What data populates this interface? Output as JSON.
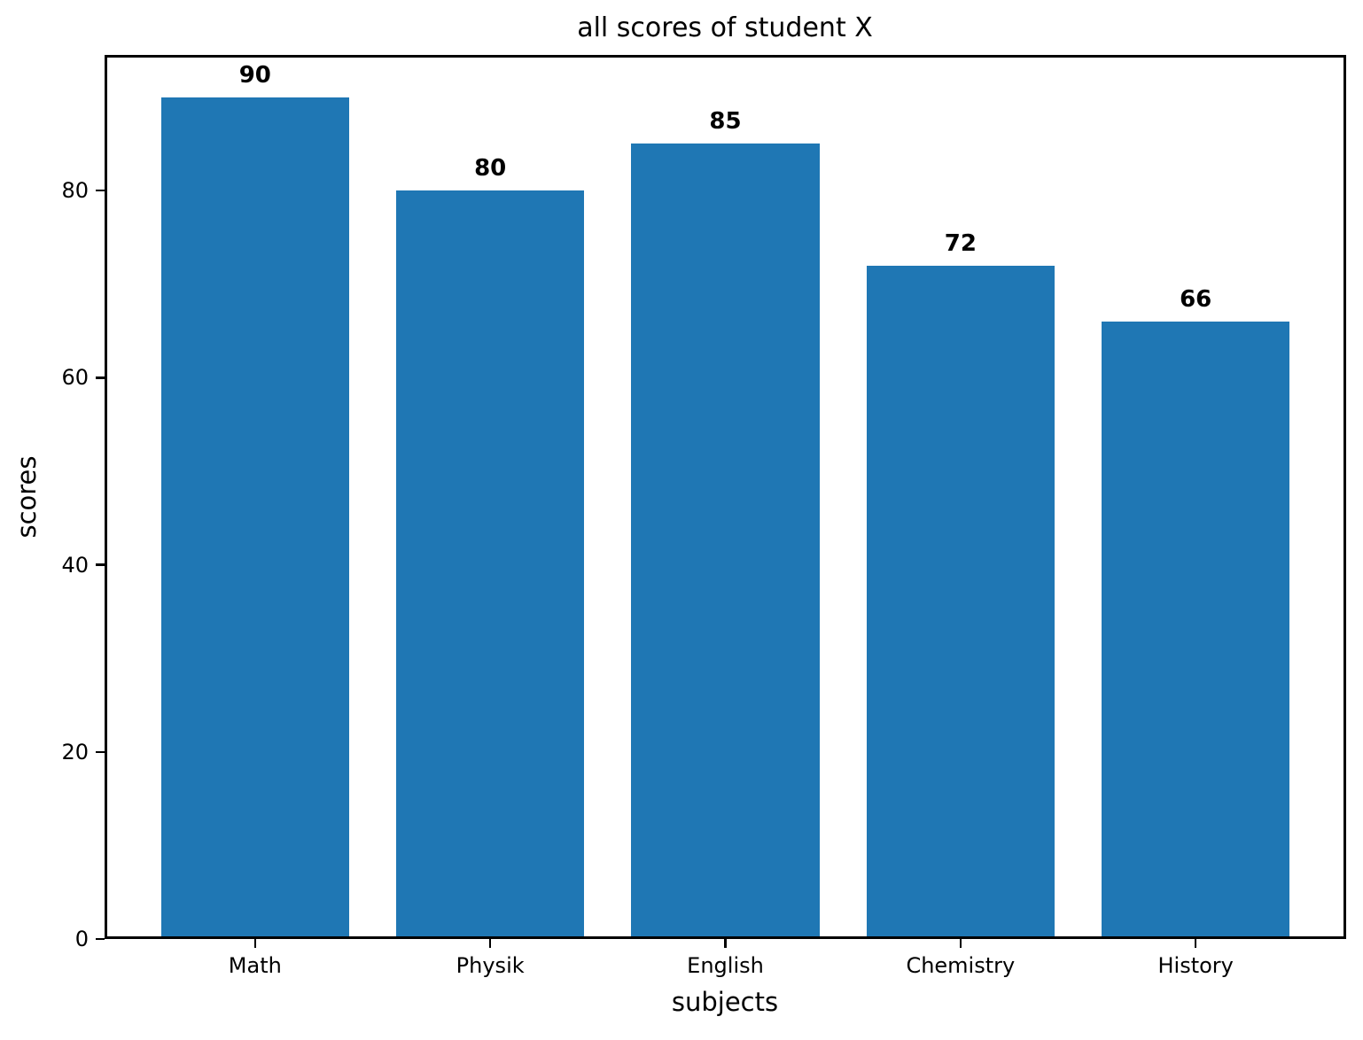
{
  "figure": {
    "background": "#ffffff",
    "text_color": "#000000"
  },
  "chart_data": {
    "type": "bar",
    "title": "all scores of student X",
    "xlabel": "subjects",
    "ylabel": "scores",
    "categories": [
      "Math",
      "Physik",
      "English",
      "Chemistry",
      "History"
    ],
    "values": [
      90,
      80,
      85,
      72,
      66
    ],
    "value_labels": [
      "90",
      "80",
      "85",
      "72",
      "66"
    ],
    "bar_color": "#1f77b4",
    "value_label_color": "#000000",
    "ylim": [
      0,
      94.5
    ],
    "yticks": [
      0,
      20,
      40,
      60,
      80
    ],
    "xlim": [
      -0.64,
      4.64
    ],
    "bar_width": 0.8,
    "grid": false,
    "legend": null
  }
}
